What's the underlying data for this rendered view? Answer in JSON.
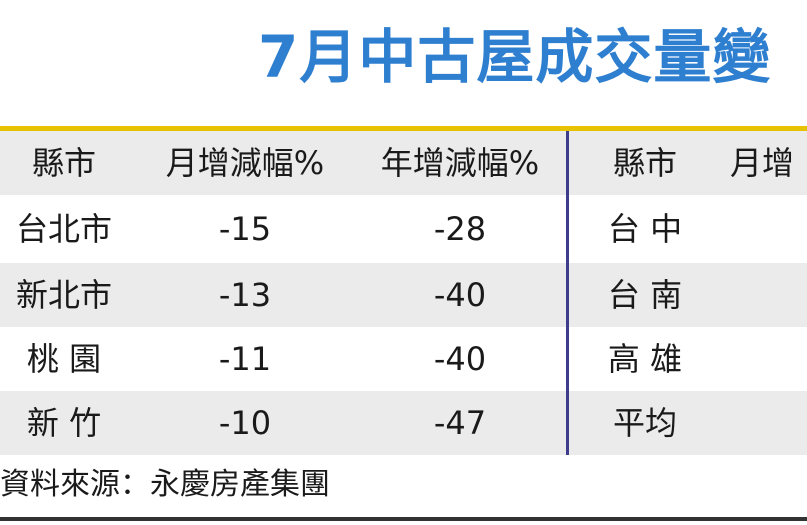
{
  "title": "7月中古屋成交量變",
  "header": {
    "county": "縣市",
    "monthly": "月增減幅%",
    "yearly": "年增減幅%",
    "county2": "縣市",
    "monthly2_partial": "月增"
  },
  "rows": [
    {
      "county": "台北市",
      "monthly": "-15",
      "yearly": "-28",
      "county2": "台 中"
    },
    {
      "county": "新北市",
      "monthly": "-13",
      "yearly": "-40",
      "county2": "台 南"
    },
    {
      "county": "桃 園",
      "monthly": "-11",
      "yearly": "-40",
      "county2": "高 雄"
    },
    {
      "county": "新 竹",
      "monthly": "-10",
      "yearly": "-47",
      "county2": "平均"
    }
  ],
  "source": "資料來源：永慶房產集團",
  "colors": {
    "title": "#2f7fd0",
    "top_rule": "#e6c200",
    "separator": "#3d3d8c",
    "row_shade": "#ebebeb"
  }
}
